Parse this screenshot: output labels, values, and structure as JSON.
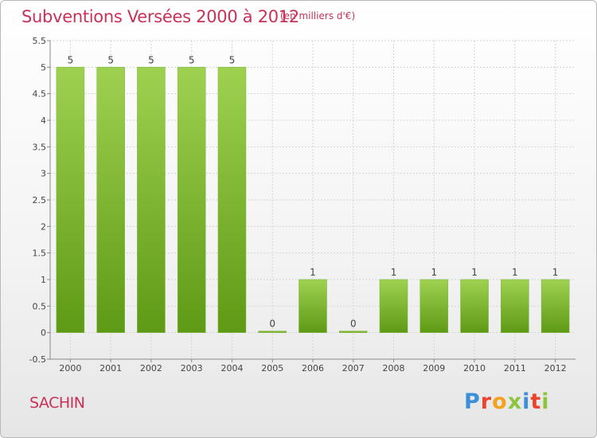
{
  "header": {
    "title": "Subventions Versées 2000 à 2012",
    "subtitle": "(en milliers d'€)"
  },
  "footer": {
    "commune": "SACHIN",
    "logo": "Proxiti",
    "logo_colors": [
      "#3a8fd6",
      "#e8452c",
      "#f2a21d",
      "#8cc63f",
      "#3a8fd6",
      "#e8452c",
      "#8cc63f"
    ]
  },
  "colors": {
    "accent": "#c8325a",
    "bar_top": "#9fd151",
    "bar_bottom": "#5e9a15"
  },
  "chart_data": {
    "type": "bar",
    "categories": [
      "2000",
      "2001",
      "2002",
      "2003",
      "2004",
      "2005",
      "2006",
      "2007",
      "2008",
      "2009",
      "2010",
      "2011",
      "2012"
    ],
    "values": [
      5,
      5,
      5,
      5,
      5,
      0,
      1,
      0,
      1,
      1,
      1,
      1,
      1
    ],
    "data_labels": [
      "5",
      "5",
      "5",
      "5",
      "5",
      "0",
      "1",
      "0",
      "1",
      "1",
      "1",
      "1",
      "1"
    ],
    "title": "Subventions Versées 2000 à 2012",
    "subtitle": "(en milliers d'€)",
    "ylim": [
      -0.5,
      5.5
    ],
    "yticks": [
      -0.5,
      0,
      0.5,
      1,
      1.5,
      2,
      2.5,
      3,
      3.5,
      4,
      4.5,
      5,
      5.5
    ],
    "ytick_labels": [
      "-0.5",
      "0",
      "0.5",
      "1",
      "1.5",
      "2",
      "2.5",
      "3",
      "3.5",
      "4",
      "4.5",
      "5",
      "5.5"
    ],
    "grid": true,
    "legend": "none"
  }
}
